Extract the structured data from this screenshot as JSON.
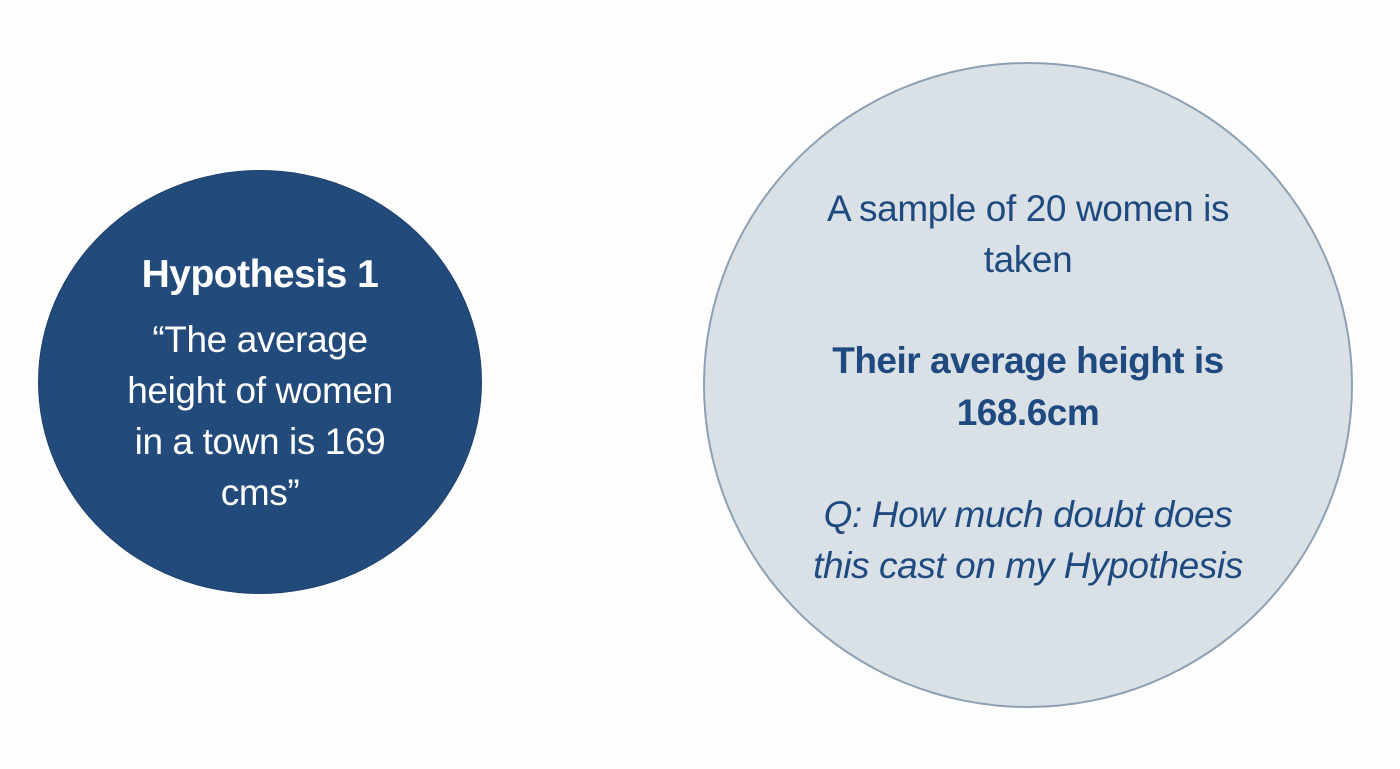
{
  "hypothesis": {
    "title": "Hypothesis 1",
    "statement": "“The average height of women in a town is 169 cms”"
  },
  "sample": {
    "description": "A sample of 20 women is taken",
    "result": "Their average height is 168.6cm",
    "question": "Q: How much doubt does this cast on my Hypothesis"
  },
  "colors": {
    "hypothesis_fill": "#224b7c",
    "sample_fill": "#d9e0e6",
    "sample_text": "#1f4a80",
    "background": "#fdfdfd"
  }
}
